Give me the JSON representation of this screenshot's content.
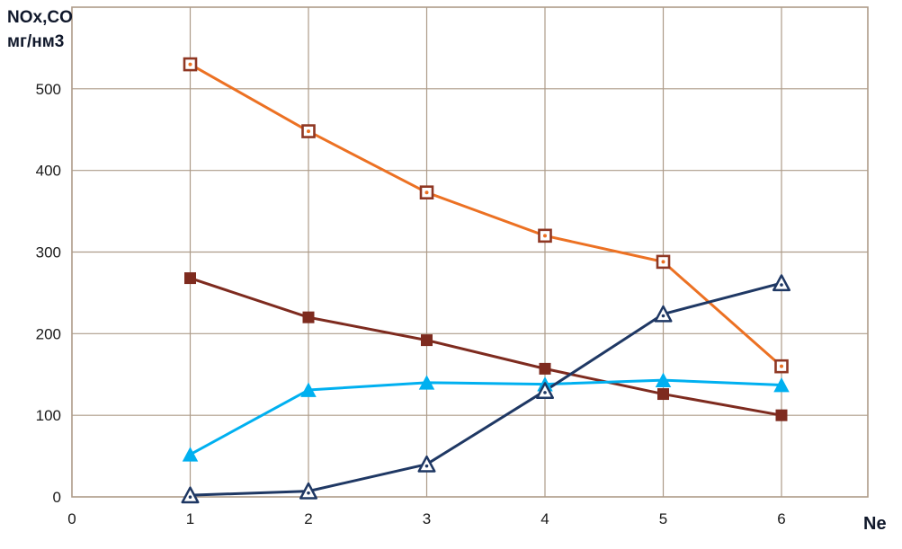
{
  "chart_data": {
    "type": "line",
    "title": "",
    "y_axis_title_line1": "NOx,CO",
    "y_axis_title_line2": "мг/нм3",
    "x_axis_title": "Ne",
    "x_ticks": [
      0,
      1,
      2,
      3,
      4,
      5,
      6
    ],
    "y_ticks": [
      0,
      100,
      200,
      300,
      400,
      500
    ],
    "xlim": [
      0,
      6.73
    ],
    "ylim": [
      0,
      600
    ],
    "grid": true,
    "grid_color": "#AD9B89",
    "background": "#ffffff",
    "x": [
      1,
      2,
      3,
      4,
      5,
      6
    ],
    "series": [
      {
        "name": "orange-open-square",
        "color": "#EC7123",
        "marker": "open-square",
        "marker_stroke": "#8F3723",
        "values": [
          530,
          448,
          373,
          320,
          288,
          160
        ]
      },
      {
        "name": "dark-red-filled-square",
        "color": "#7E2B1F",
        "marker": "filled-square",
        "marker_stroke": "#7E2B1F",
        "values": [
          268,
          220,
          192,
          157,
          126,
          100
        ]
      },
      {
        "name": "light-blue-filled-triangle",
        "color": "#00B0F0",
        "marker": "filled-triangle",
        "marker_stroke": "#00B0F0",
        "values": [
          52,
          131,
          140,
          138,
          143,
          137
        ]
      },
      {
        "name": "navy-open-triangle",
        "color": "#1F3864",
        "marker": "open-triangle",
        "marker_stroke": "#1F3864",
        "values": [
          2,
          7,
          40,
          130,
          224,
          262
        ]
      }
    ]
  }
}
